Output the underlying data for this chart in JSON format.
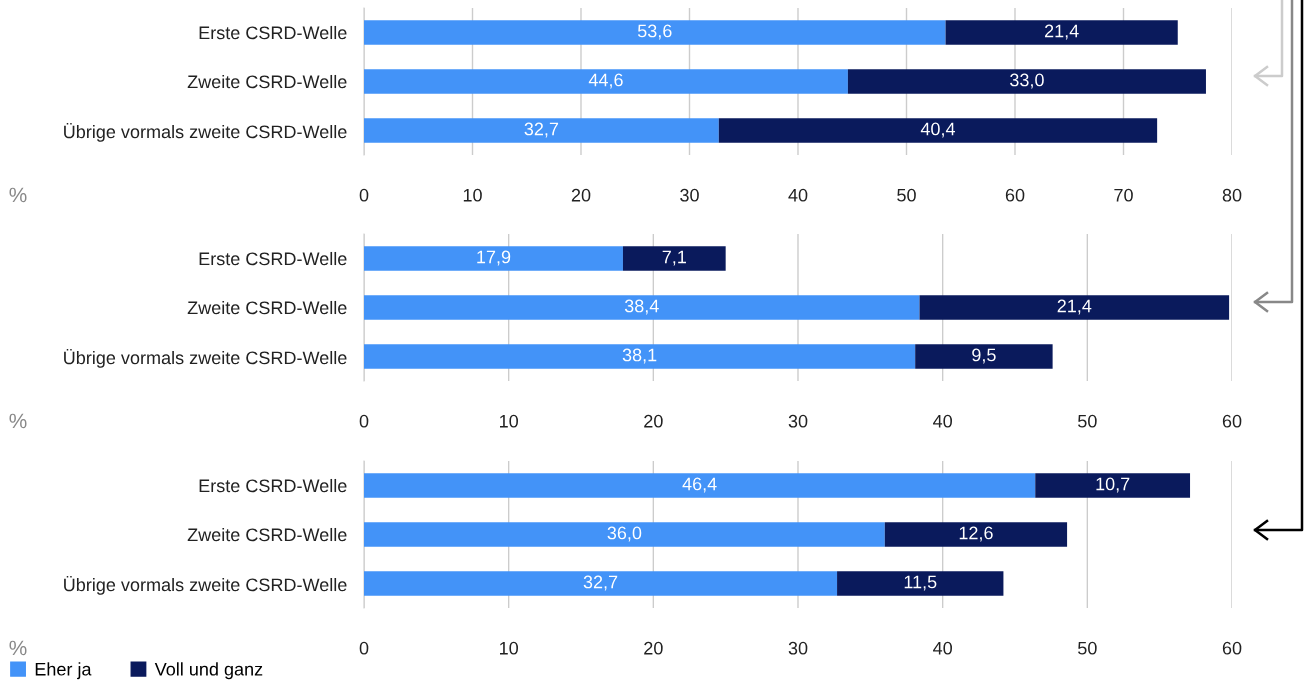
{
  "chart_data": [
    {
      "type": "bar",
      "orientation": "horizontal",
      "stacked": true,
      "categories": [
        "Erste CSRD-Welle",
        "Zweite CSRD-Welle",
        "Übrige vormals zweite CSRD-Welle"
      ],
      "xlabel": "%",
      "xlim": [
        0,
        80
      ],
      "xticks": [
        0,
        10,
        20,
        30,
        40,
        50,
        60,
        70,
        80
      ],
      "grid": "x",
      "series": [
        {
          "color": "#4393f8",
          "values": [
            53.6,
            44.6,
            32.7
          ],
          "value_labels": [
            "53,6",
            "44,6",
            "32,7"
          ]
        },
        {
          "color": "#0a1a5c",
          "values": [
            21.4,
            33.0,
            40.4
          ],
          "value_labels": [
            "21,4",
            "33,0",
            "40,4"
          ]
        }
      ]
    },
    {
      "type": "bar",
      "orientation": "horizontal",
      "stacked": true,
      "categories": [
        "Erste CSRD-Welle",
        "Zweite CSRD-Welle",
        "Übrige vormals zweite CSRD-Welle"
      ],
      "xlabel": "%",
      "xlim": [
        0,
        60
      ],
      "xticks": [
        0,
        10,
        20,
        30,
        40,
        50,
        60
      ],
      "grid": "x",
      "series": [
        {
          "color": "#4393f8",
          "values": [
            17.9,
            38.4,
            38.1
          ],
          "value_labels": [
            "17,9",
            "38,4",
            "38,1"
          ]
        },
        {
          "color": "#0a1a5c",
          "values": [
            7.1,
            21.4,
            9.5
          ],
          "value_labels": [
            "7,1",
            "21,4",
            "9,5"
          ]
        }
      ]
    },
    {
      "type": "bar",
      "orientation": "horizontal",
      "stacked": true,
      "categories": [
        "Erste CSRD-Welle",
        "Zweite CSRD-Welle",
        "Übrige vormals zweite CSRD-Welle"
      ],
      "xlabel": "%",
      "xlim": [
        0,
        60
      ],
      "xticks": [
        0,
        10,
        20,
        30,
        40,
        50,
        60
      ],
      "grid": "x",
      "legend": "bottom left",
      "series": [
        {
          "name": "Eher ja",
          "color": "#4393f8",
          "values": [
            46.4,
            36.0,
            32.7
          ],
          "value_labels": [
            "46,4",
            "36,0",
            "32,7"
          ]
        },
        {
          "name": "Voll und ganz",
          "color": "#0a1a5c",
          "values": [
            10.7,
            12.6,
            11.5
          ],
          "value_labels": [
            "10,7",
            "12,6",
            "11,5"
          ]
        }
      ]
    }
  ]
}
